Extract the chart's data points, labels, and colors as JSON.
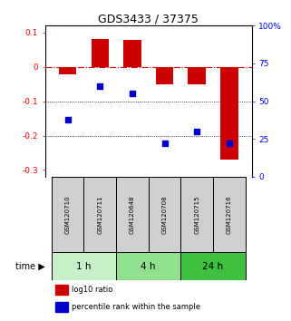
{
  "title": "GDS3433 / 37375",
  "samples": [
    "GSM120710",
    "GSM120711",
    "GSM120648",
    "GSM120708",
    "GSM120715",
    "GSM120716"
  ],
  "log10_ratio": [
    -0.022,
    0.08,
    0.078,
    -0.052,
    -0.052,
    -0.27
  ],
  "percentile_rank": [
    0.38,
    0.6,
    0.55,
    0.22,
    0.3,
    0.22
  ],
  "time_groups": [
    {
      "label": "1 h",
      "indices": [
        0,
        1
      ],
      "color": "#c8f0c8"
    },
    {
      "label": "4 h",
      "indices": [
        2,
        3
      ],
      "color": "#90e090"
    },
    {
      "label": "24 h",
      "indices": [
        4,
        5
      ],
      "color": "#40c040"
    }
  ],
  "ylim_left": [
    -0.32,
    0.12
  ],
  "ylim_right": [
    0,
    1.0
  ],
  "yticks_left": [
    -0.3,
    -0.2,
    -0.1,
    0.0,
    0.1
  ],
  "yticks_right": [
    0,
    0.25,
    0.5,
    0.75,
    1.0
  ],
  "ytick_labels_right": [
    "0",
    "25",
    "50",
    "75",
    "100%"
  ],
  "bar_color": "#cc0000",
  "point_color": "#0000cc",
  "zero_line_color": "#cc0000",
  "grid_line_color": "#000000",
  "bar_width": 0.55,
  "point_size": 18,
  "legend_bar_label": "log10 ratio",
  "legend_point_label": "percentile rank within the sample",
  "title_fontsize": 9,
  "tick_fontsize": 6.5,
  "sample_fontsize": 5.0,
  "legend_fontsize": 6.0,
  "time_fontsize": 7.5,
  "time_label_fontsize": 7
}
